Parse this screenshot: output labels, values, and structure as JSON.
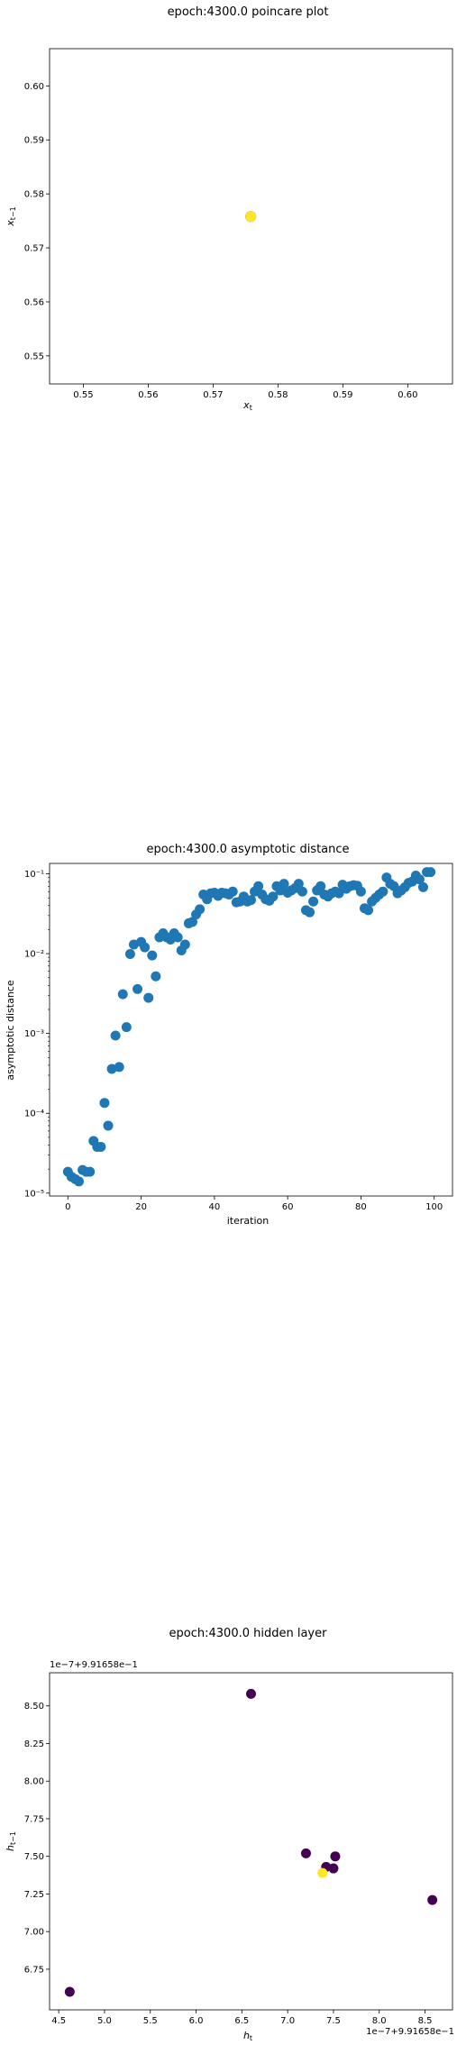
{
  "chart_data": [
    {
      "type": "scatter",
      "title": "epoch:4300.0 poincare plot",
      "xlabel": "x_t",
      "ylabel": "x_{t-1}",
      "xlim": [
        0.5448,
        0.6069
      ],
      "ylim": [
        0.5448,
        0.6069
      ],
      "xticks": [
        0.55,
        0.56,
        0.57,
        0.58,
        0.59,
        0.6
      ],
      "xtick_labels": [
        "0.55",
        "0.56",
        "0.57",
        "0.58",
        "0.59",
        "0.60"
      ],
      "yticks": [
        0.55,
        0.56,
        0.57,
        0.58,
        0.59,
        0.6
      ],
      "ytick_labels": [
        "0.55",
        "0.56",
        "0.57",
        "0.58",
        "0.59",
        "0.60"
      ],
      "points": [
        {
          "x": 0.5758,
          "y": 0.5758,
          "color": "#440154"
        },
        {
          "x": 0.5758,
          "y": 0.5758,
          "color": "#fde725"
        }
      ]
    },
    {
      "type": "scatter",
      "title": "epoch:4300.0 asymptotic distance",
      "xlabel": "iteration",
      "ylabel": "asymptotic distance",
      "yscale": "log",
      "xlim": [
        -5,
        105
      ],
      "ylim": [
        9.2e-06,
        0.135
      ],
      "xticks": [
        0,
        20,
        40,
        60,
        80,
        100
      ],
      "xtick_labels": [
        "0",
        "20",
        "40",
        "60",
        "80",
        "100"
      ],
      "yticks": [
        1e-05,
        0.0001,
        0.001,
        0.01,
        0.1
      ],
      "ytick_labels": [
        "10⁻⁵",
        "10⁻⁴",
        "10⁻³",
        "10⁻²",
        "10⁻¹"
      ],
      "color": "#1f77b4",
      "x": [
        0,
        1,
        2,
        3,
        4,
        5,
        6,
        7,
        8,
        9,
        10,
        11,
        12,
        13,
        14,
        15,
        16,
        17,
        18,
        19,
        20,
        21,
        22,
        23,
        24,
        25,
        26,
        27,
        28,
        29,
        30,
        31,
        32,
        33,
        34,
        35,
        36,
        37,
        38,
        39,
        40,
        41,
        42,
        43,
        44,
        45,
        46,
        47,
        48,
        49,
        50,
        51,
        52,
        53,
        54,
        55,
        56,
        57,
        58,
        59,
        60,
        61,
        62,
        63,
        64,
        65,
        66,
        67,
        68,
        69,
        70,
        71,
        72,
        73,
        74,
        75,
        76,
        77,
        78,
        79,
        80,
        81,
        82,
        83,
        84,
        85,
        86,
        87,
        88,
        89,
        90,
        91,
        92,
        93,
        94,
        95,
        96,
        97,
        98,
        99
      ],
      "y": [
        1.85e-05,
        1.6e-05,
        1.5e-05,
        1.4e-05,
        1.95e-05,
        1.85e-05,
        1.85e-05,
        4.5e-05,
        3.8e-05,
        3.8e-05,
        0.000135,
        7e-05,
        0.00036,
        0.00094,
        0.00038,
        0.0031,
        0.0012,
        0.0099,
        0.013,
        0.0036,
        0.014,
        0.012,
        0.0028,
        0.0095,
        0.0052,
        0.016,
        0.018,
        0.016,
        0.015,
        0.018,
        0.016,
        0.011,
        0.013,
        0.024,
        0.025,
        0.031,
        0.036,
        0.055,
        0.048,
        0.057,
        0.058,
        0.053,
        0.058,
        0.057,
        0.055,
        0.06,
        0.044,
        0.045,
        0.052,
        0.045,
        0.047,
        0.06,
        0.07,
        0.055,
        0.048,
        0.046,
        0.052,
        0.07,
        0.062,
        0.075,
        0.058,
        0.062,
        0.066,
        0.075,
        0.06,
        0.035,
        0.033,
        0.045,
        0.062,
        0.07,
        0.055,
        0.052,
        0.057,
        0.06,
        0.057,
        0.073,
        0.065,
        0.07,
        0.072,
        0.071,
        0.06,
        0.037,
        0.035,
        0.045,
        0.05,
        0.055,
        0.06,
        0.09,
        0.075,
        0.07,
        0.057,
        0.062,
        0.068,
        0.077,
        0.08,
        0.095,
        0.085,
        0.068,
        0.105,
        0.105
      ]
    },
    {
      "type": "scatter",
      "title": "epoch:4300.0 hidden layer",
      "xlabel": "h_t",
      "ylabel": "h_{t-1}",
      "x_offset_text": "1e−7+9.91658e−1",
      "y_offset_text": "1e−7+9.91658e−1",
      "xlim": [
        4.4,
        8.8
      ],
      "ylim": [
        6.48,
        8.72
      ],
      "xticks": [
        4.5,
        5.0,
        5.5,
        6.0,
        6.5,
        7.0,
        7.5,
        8.0,
        8.5
      ],
      "xtick_labels": [
        "4.5",
        "5.0",
        "5.5",
        "6.0",
        "6.5",
        "7.0",
        "7.5",
        "8.0",
        "8.5"
      ],
      "yticks": [
        6.75,
        7.0,
        7.25,
        7.5,
        7.75,
        8.0,
        8.25,
        8.5
      ],
      "ytick_labels": [
        "6.75",
        "7.00",
        "7.25",
        "7.50",
        "7.75",
        "8.00",
        "8.25",
        "8.50"
      ],
      "points": [
        {
          "x": 6.6,
          "y": 8.58,
          "color": "#440154"
        },
        {
          "x": 7.2,
          "y": 7.52,
          "color": "#440154"
        },
        {
          "x": 7.52,
          "y": 7.5,
          "color": "#440154"
        },
        {
          "x": 7.42,
          "y": 7.43,
          "color": "#440154"
        },
        {
          "x": 7.5,
          "y": 7.42,
          "color": "#440154"
        },
        {
          "x": 8.58,
          "y": 7.21,
          "color": "#440154"
        },
        {
          "x": 4.62,
          "y": 6.6,
          "color": "#440154"
        },
        {
          "x": 7.38,
          "y": 7.39,
          "color": "#fde725"
        }
      ]
    }
  ]
}
